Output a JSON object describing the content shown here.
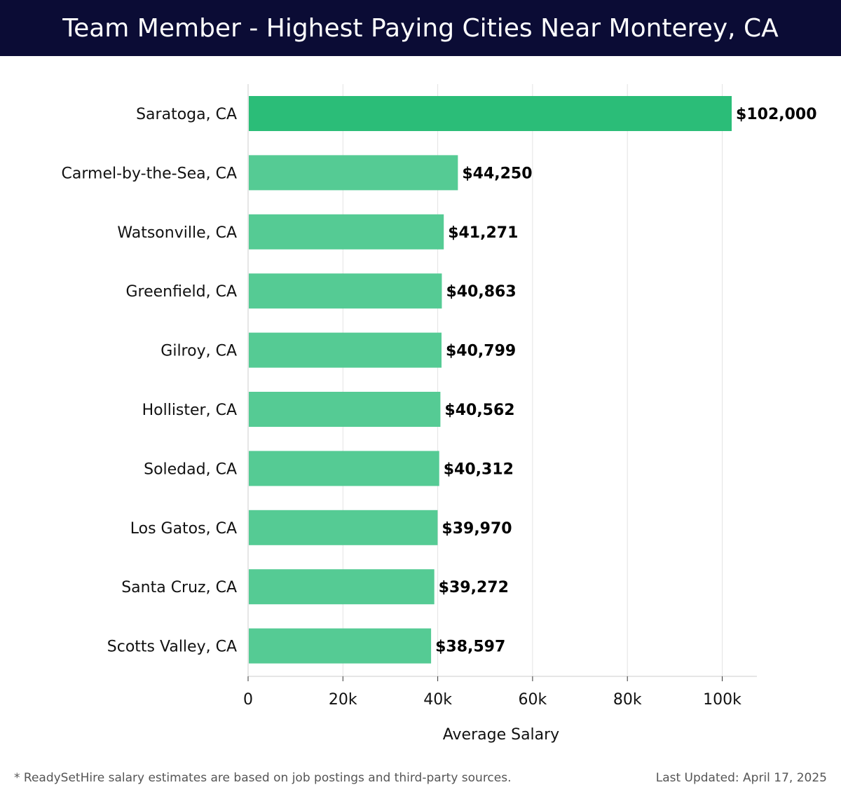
{
  "header": {
    "title": "Team Member - Highest Paying Cities Near Monterey, CA"
  },
  "colors": {
    "header_bg": "#0b0c35",
    "bar_top": "#2bbd78",
    "bar": "#55cb94",
    "grid": "#e3e3e3",
    "axis": "#cccccc"
  },
  "chart_data": {
    "type": "bar",
    "orientation": "horizontal",
    "title": "Team Member - Highest Paying Cities Near Monterey, CA",
    "xlabel": "Average Salary",
    "ylabel": "",
    "categories": [
      "Saratoga, CA",
      "Carmel-by-the-Sea, CA",
      "Watsonville, CA",
      "Greenfield, CA",
      "Gilroy, CA",
      "Hollister, CA",
      "Soledad, CA",
      "Los Gatos, CA",
      "Santa Cruz, CA",
      "Scotts Valley, CA"
    ],
    "values": [
      102000,
      44250,
      41271,
      40863,
      40799,
      40562,
      40312,
      39970,
      39272,
      38597
    ],
    "value_labels": [
      "$102,000",
      "$44,250",
      "$41,271",
      "$40,863",
      "$40,799",
      "$40,562",
      "$40,312",
      "$39,970",
      "$39,272",
      "$38,597"
    ],
    "xlim": [
      0,
      107000
    ],
    "x_ticks": [
      0,
      20000,
      40000,
      60000,
      80000,
      100000
    ],
    "x_tick_labels": [
      "0",
      "20k",
      "40k",
      "60k",
      "80k",
      "100k"
    ],
    "grid": true,
    "legend": "none"
  },
  "footer": {
    "note": "* ReadySetHire salary estimates are based on job postings and third-party sources.",
    "last_updated": "Last Updated: April 17, 2025"
  }
}
